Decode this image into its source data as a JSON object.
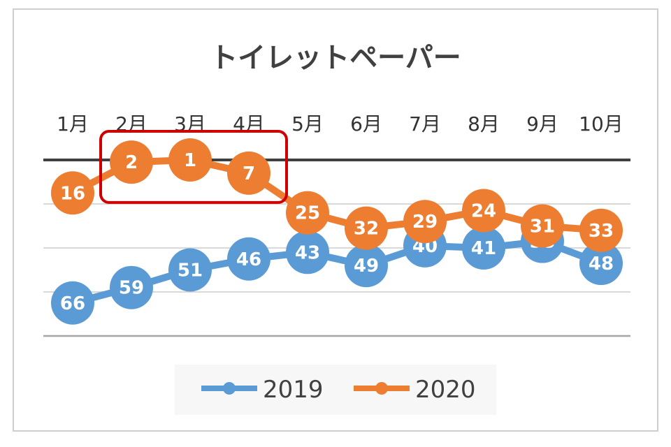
{
  "chart_data": {
    "type": "line",
    "title": "トイレットペーパー",
    "categories": [
      "1月",
      "2月",
      "3月",
      "4月",
      "5月",
      "6月",
      "7月",
      "8月",
      "9月",
      "10月"
    ],
    "y_axis": {
      "inverted": true,
      "ylim": [
        1,
        81
      ],
      "show_tick_labels": false,
      "x_labels_position": "top"
    },
    "gridlines": [
      21,
      41,
      61
    ],
    "series": [
      {
        "name": "2019",
        "color": "#5b9bd5",
        "values": [
          66,
          59,
          51,
          46,
          43,
          49,
          40,
          41,
          38,
          48
        ]
      },
      {
        "name": "2020",
        "color": "#ed7d31",
        "values": [
          16,
          2,
          1,
          7,
          25,
          32,
          29,
          24,
          31,
          33
        ]
      }
    ],
    "data_labels": true,
    "highlight": {
      "categories": [
        "2月",
        "3月",
        "4月"
      ],
      "series": "2020",
      "color": "#d00000"
    },
    "legend": {
      "position": "bottom"
    },
    "grid": true
  }
}
